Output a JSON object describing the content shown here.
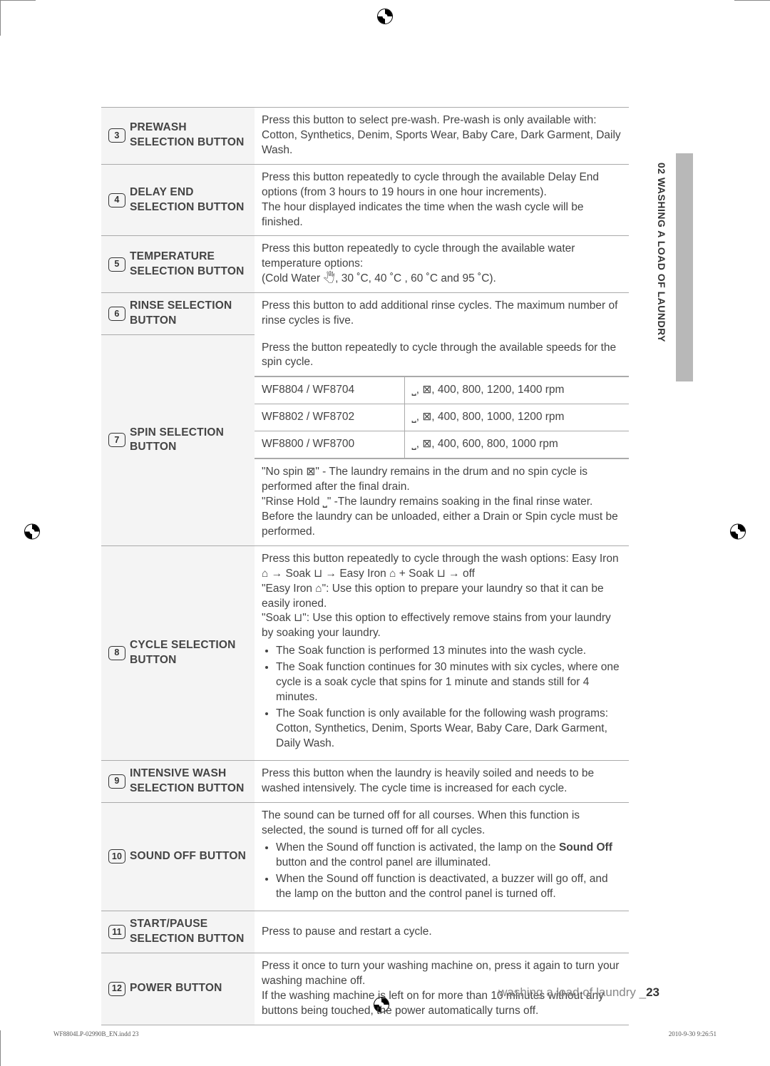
{
  "side_tab_text": "02 WASHING A LOAD OF LAUNDRY",
  "rows": {
    "r3": {
      "num": "3",
      "title": "PREWASH\nSELECTION BUTTON",
      "desc": "Press this button to select pre-wash. Pre-wash is only available with: Cotton, Synthetics, Denim, Sports Wear, Baby Care, Dark Garment, Daily Wash."
    },
    "r4": {
      "num": "4",
      "title": "DELAY END\nSELECTION BUTTON",
      "desc": "Press this button repeatedly to cycle through the available Delay End options (from 3 hours to 19 hours in one hour increments).\nThe hour displayed indicates the time when the wash cycle will be finished."
    },
    "r5": {
      "num": "5",
      "title": "TEMPERATURE\nSELECTION BUTTON",
      "desc": "Press this button repeatedly to cycle through the available water temperature options:\n(Cold Water 🖑, 30 ˚C, 40 ˚C , 60 ˚C and 95 ˚C)."
    },
    "r6": {
      "num": "6",
      "title": "RINSE SELECTION\nBUTTON",
      "desc": "Press this button to add additional rinse cycles. The maximum number of rinse cycles is five."
    },
    "r7": {
      "num": "7",
      "title": "SPIN SELECTION\nBUTTON",
      "top": "Press the button repeatedly to cycle through the available speeds for the spin cycle.",
      "models": [
        {
          "m": "WF8804 / WF8704",
          "s": "⎵, ⊠, 400, 800, 1200, 1400 rpm"
        },
        {
          "m": "WF8802 / WF8702",
          "s": "⎵, ⊠, 400, 800, 1000, 1200 rpm"
        },
        {
          "m": "WF8800 / WF8700",
          "s": "⎵, ⊠, 400, 600, 800, 1000 rpm"
        }
      ],
      "bottom": "\"No spin ⊠\" - The laundry remains in the drum and no spin cycle is performed after the final drain.\n\"Rinse Hold ⎵\" -The laundry remains soaking in the final rinse water. Before the laundry can be unloaded, either a Drain or Spin cycle must be performed."
    },
    "r8": {
      "num": "8",
      "title": "CYCLE SELECTION\nBUTTON",
      "intro": "Press this button repeatedly to cycle through the wash options: Easy Iron ⌂ → Soak ⊔ → Easy Iron ⌂ + Soak ⊔ → off\n\"Easy Iron ⌂\": Use this option to prepare your laundry so that it can be easily ironed.\n\"Soak ⊔\": Use this option to effectively remove stains from your laundry by soaking your laundry.",
      "bullets": [
        "The Soak function is performed 13 minutes into the wash cycle.",
        "The Soak function continues for 30 minutes with six cycles, where one cycle is a soak cycle that spins for 1 minute and stands still for 4 minutes.",
        "The Soak function is only available for the following wash programs: Cotton, Synthetics, Denim, Sports Wear, Baby Care, Dark Garment, Daily Wash."
      ]
    },
    "r9": {
      "num": "9",
      "title": "INTENSIVE WASH\nSELECTION BUTTON",
      "desc": "Press this button when the laundry is heavily soiled and needs to be washed intensively. The cycle time is increased for each cycle."
    },
    "r10": {
      "num": "10",
      "title": "SOUND OFF BUTTON",
      "intro": "The sound can be turned off for all courses. When this function is selected, the sound is turned off for all cycles.",
      "bullets_html": [
        "When the Sound off function is activated, the lamp on the <b>Sound Off</b> button and the control panel are illuminated.",
        "When the Sound off function is deactivated, a buzzer will go off, and the lamp on the button and the control panel is turned off."
      ]
    },
    "r11": {
      "num": "11",
      "title": "START/PAUSE\nSELECTION BUTTON",
      "desc": "Press to pause and restart a cycle."
    },
    "r12": {
      "num": "12",
      "title": "POWER BUTTON",
      "desc": "Press it once to turn your washing machine on, press it again to turn your washing machine off.\nIf the washing machine is left on for more than 10 minutes without any buttons being touched, the power automatically turns off."
    }
  },
  "footer": {
    "text": "washing a load of laundry _",
    "page": "23"
  },
  "indd": "WF8804LP-02990B_EN.indd   23",
  "date": "2010-9-30   9:26:51"
}
